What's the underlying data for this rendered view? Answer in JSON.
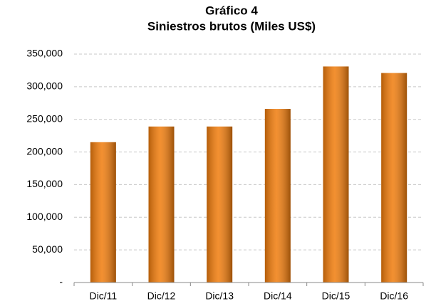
{
  "chart_data": {
    "type": "bar",
    "title": "Gráfico 4",
    "subtitle": "Siniestros brutos (Miles US$)",
    "categories": [
      "Dic/11",
      "Dic/12",
      "Dic/13",
      "Dic/14",
      "Dic/15",
      "Dic/16"
    ],
    "values": [
      215000,
      239000,
      239000,
      266000,
      331000,
      321000
    ],
    "color": "#f07c0c",
    "ylim": [
      0,
      350000
    ],
    "yticks": [
      {
        "value": 0,
        "label": "-"
      },
      {
        "value": 50000,
        "label": "50,000"
      },
      {
        "value": 100000,
        "label": "100,000"
      },
      {
        "value": 150000,
        "label": "150,000"
      },
      {
        "value": 200000,
        "label": "200,000"
      },
      {
        "value": 250000,
        "label": "250,000"
      },
      {
        "value": 300000,
        "label": "300,000"
      },
      {
        "value": 350000,
        "label": "350,000"
      }
    ],
    "grid": true
  }
}
